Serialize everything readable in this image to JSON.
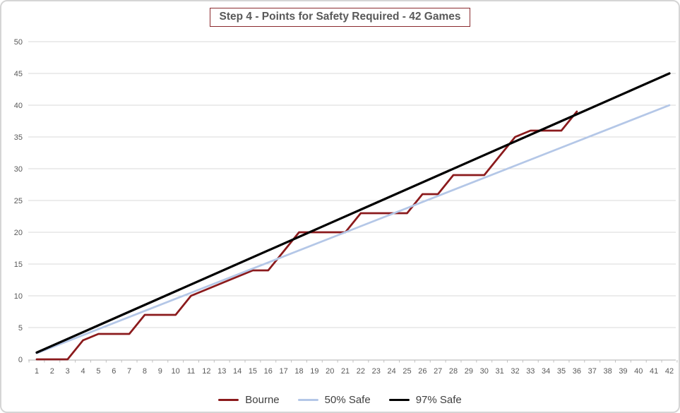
{
  "chart_title": "Step 4 - Points for Safety Required - 42 Games",
  "colors": {
    "bourne": "#8b1a1c",
    "fifty_safe": "#b4c7e7",
    "ninetyseven_safe": "#000000",
    "gridline": "#d9d9d9",
    "axis_line": "#bfbfbf",
    "axis_label": "#595959",
    "title_text": "#595959",
    "title_border": "#8b2a2e",
    "legend_text": "#404040",
    "frame_border": "#d5d5d5"
  },
  "chart_data": {
    "type": "line",
    "title": "Step 4 - Points for Safety Required - 42 Games",
    "xlabel": "",
    "ylabel": "",
    "xlim": [
      1,
      42
    ],
    "ylim": [
      0,
      50
    ],
    "grid": "horizontal",
    "legend_position": "bottom",
    "x_ticks": [
      1,
      2,
      3,
      4,
      5,
      6,
      7,
      8,
      9,
      10,
      11,
      12,
      13,
      14,
      15,
      16,
      17,
      18,
      19,
      20,
      21,
      22,
      23,
      24,
      25,
      26,
      27,
      28,
      29,
      30,
      31,
      32,
      33,
      34,
      35,
      36,
      37,
      38,
      39,
      40,
      41,
      42
    ],
    "y_ticks": [
      0,
      5,
      10,
      15,
      20,
      25,
      30,
      35,
      40,
      45,
      50
    ],
    "series": [
      {
        "name": "Bourne",
        "color": "#8b1a1c",
        "stroke_width": 2.75,
        "points": [
          [
            1,
            0
          ],
          [
            2,
            0
          ],
          [
            3,
            0
          ],
          [
            4,
            3
          ],
          [
            5,
            4
          ],
          [
            6,
            4
          ],
          [
            7,
            4
          ],
          [
            8,
            7
          ],
          [
            9,
            7
          ],
          [
            10,
            7
          ],
          [
            11,
            10
          ],
          [
            12,
            11
          ],
          [
            13,
            12
          ],
          [
            14,
            13
          ],
          [
            15,
            14
          ],
          [
            16,
            14
          ],
          [
            17,
            17
          ],
          [
            18,
            20
          ],
          [
            19,
            20
          ],
          [
            20,
            20
          ],
          [
            21,
            20
          ],
          [
            22,
            23
          ],
          [
            23,
            23
          ],
          [
            24,
            23
          ],
          [
            25,
            23
          ],
          [
            26,
            26
          ],
          [
            27,
            26
          ],
          [
            28,
            29
          ],
          [
            29,
            29
          ],
          [
            30,
            29
          ],
          [
            31,
            32
          ],
          [
            32,
            35
          ],
          [
            33,
            36
          ],
          [
            34,
            36
          ],
          [
            35,
            36
          ],
          [
            36,
            39
          ]
        ]
      },
      {
        "name": "50% Safe",
        "color": "#b4c7e7",
        "stroke_width": 2.75,
        "points": [
          [
            1,
            0.95
          ],
          [
            42,
            40
          ]
        ]
      },
      {
        "name": "97% Safe",
        "color": "#000000",
        "stroke_width": 3.25,
        "points": [
          [
            1,
            1.07
          ],
          [
            42,
            45
          ]
        ]
      }
    ]
  }
}
